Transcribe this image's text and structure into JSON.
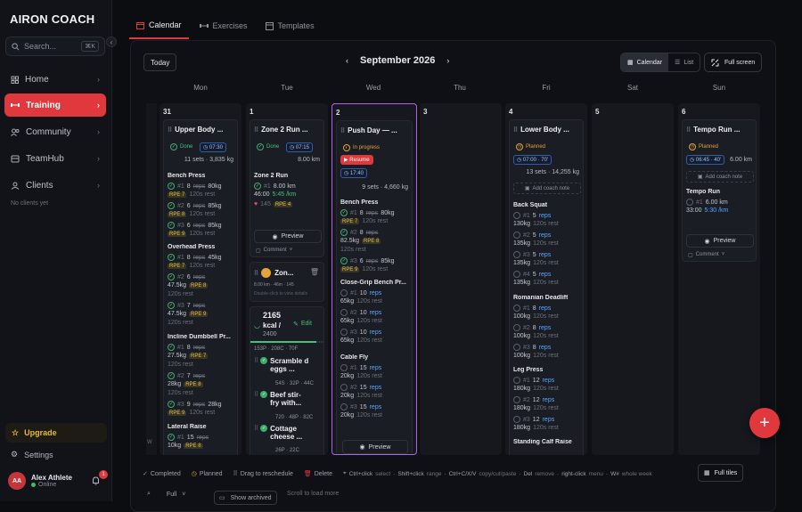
{
  "app": {
    "logo": "AIRON COACH"
  },
  "search": {
    "placeholder": "Search...",
    "shortcut": "⌘K"
  },
  "sidebar": {
    "items": [
      {
        "label": "Home"
      },
      {
        "label": "Training"
      },
      {
        "label": "Community"
      },
      {
        "label": "TeamHub"
      },
      {
        "label": "Clients"
      }
    ],
    "no_clients": "No clients yet",
    "upgrade": "Upgrade",
    "settings": "Settings"
  },
  "user": {
    "initials": "AA",
    "name": "Alex Athlete",
    "status": "Online",
    "notifications": "1"
  },
  "tabs": [
    {
      "label": "Calendar"
    },
    {
      "label": "Exercises"
    },
    {
      "label": "Templates"
    }
  ],
  "toolbar": {
    "today": "Today",
    "month": "September 2026",
    "calendar": "Calendar",
    "list": "List",
    "fullscreen": "Full screen"
  },
  "days": [
    "Mon",
    "Tue",
    "Wed",
    "Thu",
    "Fri",
    "Sat",
    "Sun"
  ],
  "dates": [
    "31",
    "1",
    "2",
    "3",
    "4",
    "5",
    "6"
  ],
  "mon": {
    "title": "Upper Body ...",
    "status": "Done",
    "time": "07:30",
    "stats": "11 sets · 3,835 kg",
    "ex1": "Bench Press",
    "ex1r": [
      [
        "#1",
        "8",
        "reps",
        "80kg"
      ],
      [
        "RPE 7",
        "120s rest"
      ],
      [
        "#2",
        "6",
        "reps",
        "85kg"
      ],
      [
        "RPE 8",
        "120s rest"
      ],
      [
        "#3",
        "6",
        "reps",
        "85kg"
      ],
      [
        "RPE 9",
        "120s rest"
      ]
    ],
    "ex2": "Overhead Press",
    "ex2r": [
      [
        "#1",
        "8",
        "reps",
        "45kg"
      ],
      [
        "RPE 7",
        "120s rest"
      ],
      [
        "#2",
        "6",
        "reps"
      ],
      [
        "47.5kg",
        "RPE 8"
      ],
      [
        "120s rest"
      ],
      [
        "#3",
        "7",
        "reps"
      ],
      [
        "47.5kg",
        "RPE 9"
      ],
      [
        "120s rest"
      ]
    ],
    "ex3": "Incline Dumbbell Pr...",
    "ex3r": [
      [
        "#1",
        "8",
        "reps"
      ],
      [
        "27.5kg",
        "RPE 7"
      ],
      [
        "120s rest"
      ],
      [
        "#2",
        "7",
        "reps"
      ],
      [
        "28kg",
        "RPE 8"
      ],
      [
        "120s rest"
      ],
      [
        "#3",
        "9",
        "reps",
        "28kg"
      ],
      [
        "RPE 9",
        "120s rest"
      ]
    ],
    "ex4": "Lateral Raise",
    "ex4r": [
      [
        "#1",
        "15",
        "reps"
      ],
      [
        "10kg",
        "RPE 8"
      ]
    ]
  },
  "tue": {
    "title": "Zone 2 Run ...",
    "status": "Done",
    "time": "07:15",
    "dist": "8.00 km",
    "ex": "Zone 2 Run",
    "r1": [
      "#1",
      "8.00 km"
    ],
    "r2": [
      "46:00",
      "5:45 /km"
    ],
    "r3": [
      "145",
      "RPE 4"
    ],
    "preview": "Preview",
    "comment": "Comment",
    "card2": "Zon...",
    "card2sub": "8.00 km · 46m · 145",
    "card2hint": "Double-click to view details",
    "kcal": "2165",
    "kcal_unit": "kcal /",
    "kcal_target": "2400",
    "edit": "Edit",
    "macros": "153P · 208C · 70F",
    "meals": [
      {
        "name": "Scramble d eggs ...",
        "macro": "54S · 32P · 44C"
      },
      {
        "name": "Beef stir-fry with...",
        "macro": "720 · 48P · 82C"
      },
      {
        "name": "Cottage cheese ...",
        "macro": "26P · 22C"
      }
    ]
  },
  "wed": {
    "title": "Push Day — ...",
    "status": "In progress",
    "resume": "Resume",
    "time": "17:40",
    "stats": "9 sets · 4,660 kg",
    "ex1": "Bench Press",
    "ex1r": [
      [
        "#1",
        "8",
        "reps",
        "80kg"
      ],
      [
        "RPE 7",
        "120s rest"
      ],
      [
        "#2",
        "8",
        "reps"
      ],
      [
        "82.5kg",
        "RPE 8"
      ],
      [
        "120s rest"
      ],
      [
        "#3",
        "6",
        "reps",
        "85kg"
      ],
      [
        "RPE 9",
        "120s rest"
      ]
    ],
    "ex2": "Close-Grip Bench Pr...",
    "ex2r": [
      [
        "#1",
        "10",
        "reps"
      ],
      [
        "65kg",
        "120s rest"
      ],
      [
        "#2",
        "10",
        "reps"
      ],
      [
        "65kg",
        "120s rest"
      ],
      [
        "#3",
        "10",
        "reps"
      ],
      [
        "65kg",
        "120s rest"
      ]
    ],
    "ex3": "Cable Fly",
    "ex3r": [
      [
        "#1",
        "15",
        "reps"
      ],
      [
        "20kg",
        "120s rest"
      ],
      [
        "#2",
        "15",
        "reps"
      ],
      [
        "20kg",
        "120s rest"
      ],
      [
        "#3",
        "15",
        "reps"
      ],
      [
        "20kg",
        "120s rest"
      ]
    ],
    "preview": "Preview"
  },
  "fri": {
    "title": "Lower Body ...",
    "status": "Planned",
    "time": "07:00",
    "dur": "70'",
    "stats": "13 sets · 14,255 kg",
    "note": "Add coach note",
    "ex1": "Back Squat",
    "ex1r": [
      [
        "#1",
        "5",
        "reps"
      ],
      [
        "130kg",
        "120s rest"
      ],
      [
        "#2",
        "5",
        "reps"
      ],
      [
        "135kg",
        "120s rest"
      ],
      [
        "#3",
        "5",
        "reps"
      ],
      [
        "135kg",
        "120s rest"
      ],
      [
        "#4",
        "5",
        "reps"
      ],
      [
        "135kg",
        "120s rest"
      ]
    ],
    "ex2": "Romanian Deadlift",
    "ex2r": [
      [
        "#1",
        "8",
        "reps"
      ],
      [
        "100kg",
        "120s rest"
      ],
      [
        "#2",
        "8",
        "reps"
      ],
      [
        "100kg",
        "120s rest"
      ],
      [
        "#3",
        "8",
        "reps"
      ],
      [
        "100kg",
        "120s rest"
      ]
    ],
    "ex3": "Leg Press",
    "ex3r": [
      [
        "#1",
        "12",
        "reps"
      ],
      [
        "180kg",
        "120s rest"
      ],
      [
        "#2",
        "12",
        "reps"
      ],
      [
        "180kg",
        "120s rest"
      ],
      [
        "#3",
        "12",
        "reps"
      ],
      [
        "180kg",
        "120s rest"
      ]
    ],
    "ex4": "Standing Calf Raise"
  },
  "sun": {
    "title": "Tempo Run ...",
    "status": "Planned",
    "time": "06:45",
    "dur": "40'",
    "dist": "6.00 km",
    "note": "Add coach note",
    "ex": "Tempo Run",
    "r1": [
      "#1",
      "6.00 km"
    ],
    "r2": [
      "33:00",
      "5:30 /km"
    ],
    "preview": "Preview",
    "comment": "Comment"
  },
  "legend": {
    "completed": "Completed",
    "planned": "Planned",
    "drag": "Drag to reschedule",
    "delete": "Delete",
    "k1": "Ctrl+click",
    "k1d": "select",
    "k2": "Shift+click",
    "k2d": "range",
    "k3": "Ctrl+C/X/V",
    "k3d": "copy/cut/paste",
    "k4": "Del",
    "k4d": "remove",
    "k5": "right-click",
    "k5d": "menu",
    "k6": "W#",
    "k6d": "whole week",
    "fulltiles": "Full tiles"
  },
  "bottom": {
    "zoom": "Full",
    "archived": "Show archived",
    "scroll": "Scroll to load more"
  },
  "colors": {
    "accent": "#e0383c",
    "done": "#44c27a",
    "planned": "#e5a33a",
    "today_border": "#b061e6"
  }
}
